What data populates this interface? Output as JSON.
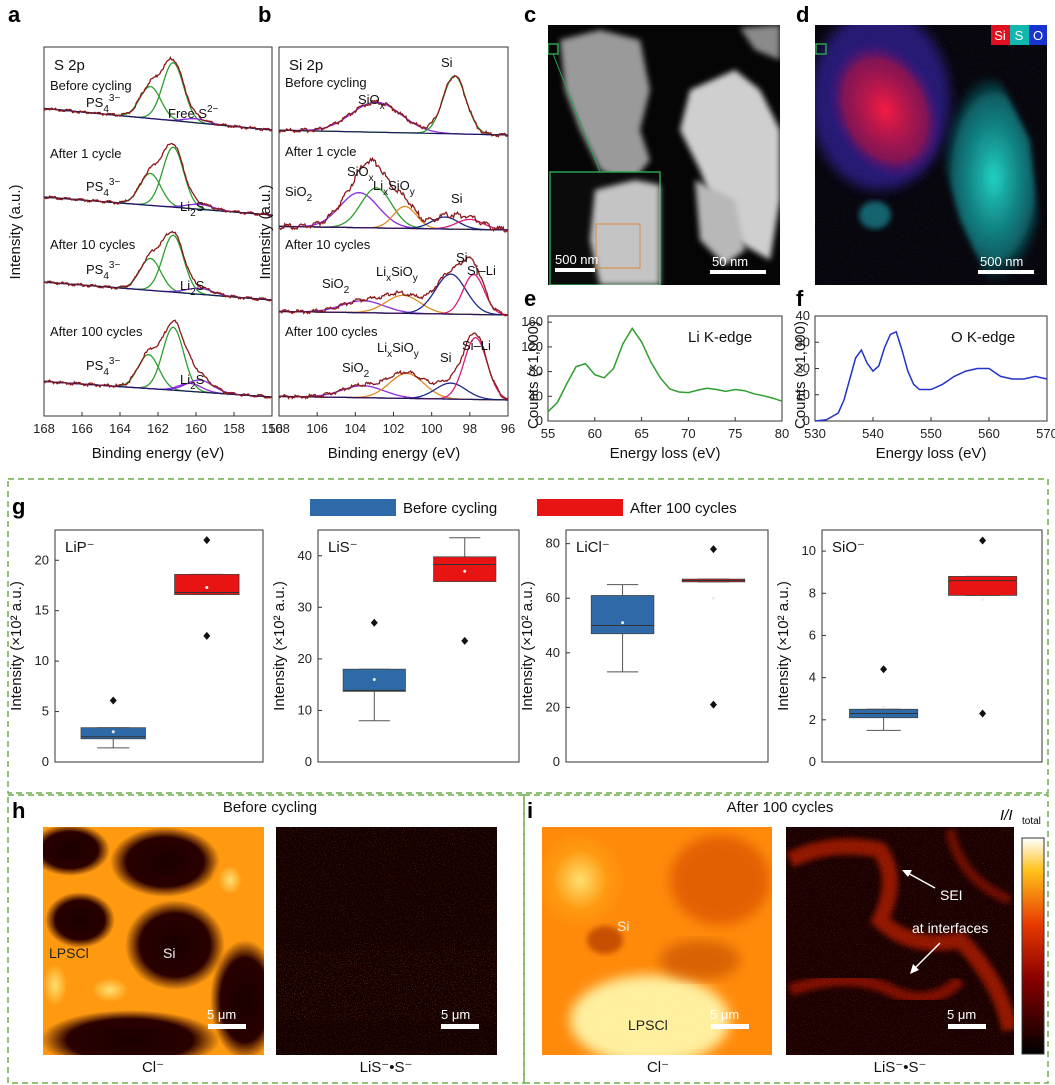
{
  "colors": {
    "raw": "#8b1a1a",
    "fit_green": "#2e9e2e",
    "fit_purple": "#8a2be2",
    "fit_orange": "#e08a1e",
    "fit_navy": "#1e2a8a",
    "fit_pink": "#e0187a",
    "li_edge": "#2e9e2e",
    "o_edge": "#2233cc",
    "before": "#2f6aa8",
    "after": "#e81414",
    "dash_box": "#6dae4b"
  },
  "panel_a": {
    "label": "a",
    "title": "S 2p",
    "xlabel": "Binding energy (eV)",
    "ylabel": "Intensity (a.u.)",
    "xticks": [
      "168",
      "166",
      "164",
      "162",
      "160",
      "158",
      "156"
    ],
    "rows": [
      {
        "name": "Before cycling",
        "peaks": [
          "PS4 3−",
          "Free S2−"
        ]
      },
      {
        "name": "After 1 cycle",
        "peaks": [
          "PS4 3−",
          "Li2S"
        ]
      },
      {
        "name": "After 10 cycles",
        "peaks": [
          "PS4 3−",
          "Li2S"
        ]
      },
      {
        "name": "After 100 cycles",
        "peaks": [
          "PS4 3−",
          "Li2S"
        ]
      }
    ]
  },
  "panel_b": {
    "label": "b",
    "title": "Si 2p",
    "xlabel": "Binding energy (eV)",
    "ylabel": "Intensity (a.u.)",
    "xticks": [
      "108",
      "106",
      "104",
      "102",
      "100",
      "98",
      "96"
    ],
    "rows": [
      {
        "name": "Before cycling",
        "peaks": [
          "SiOx",
          "Si"
        ]
      },
      {
        "name": "After 1 cycle",
        "peaks": [
          "SiO2",
          "SiOx",
          "LixSiOy",
          "Si"
        ]
      },
      {
        "name": "After 10 cycles",
        "peaks": [
          "SiO2",
          "LixSiOy",
          "Si",
          "Si–Li"
        ]
      },
      {
        "name": "After 100 cycles",
        "peaks": [
          "SiO2",
          "LixSiOy",
          "Si",
          "Si–Li"
        ]
      }
    ]
  },
  "panel_c": {
    "label": "c",
    "scale_main": "500 nm",
    "scale_inset": "50 nm"
  },
  "panel_d": {
    "label": "d",
    "legend": [
      "Si",
      "S",
      "O"
    ],
    "scale": "500 nm"
  },
  "panel_e": {
    "label": "e",
    "title": "Li K-edge",
    "xlabel": "Energy loss (eV)",
    "ylabel": "Counts (×1,000)",
    "xticks": [
      "55",
      "60",
      "65",
      "70",
      "75",
      "80"
    ],
    "yticks": [
      "0",
      "40",
      "80",
      "120",
      "160"
    ]
  },
  "panel_f": {
    "label": "f",
    "title": "O K-edge",
    "xlabel": "Energy loss (eV)",
    "ylabel": "Counts (×1,000)",
    "xticks": [
      "530",
      "540",
      "550",
      "560",
      "570"
    ],
    "yticks": [
      "0",
      "10",
      "20",
      "30",
      "40"
    ]
  },
  "panel_g": {
    "label": "g",
    "legend_before": "Before cycling",
    "legend_after": "After 100 cycles",
    "ylabel": "Intensity (×10² a.u.)",
    "plots": [
      {
        "name": "LiP⁻",
        "yticks": [
          "0",
          "5",
          "10",
          "15",
          "20"
        ],
        "ymax": 23
      },
      {
        "name": "LiS⁻",
        "yticks": [
          "0",
          "10",
          "20",
          "30",
          "40"
        ],
        "ymax": 45
      },
      {
        "name": "LiCl⁻",
        "yticks": [
          "0",
          "20",
          "40",
          "60",
          "80"
        ],
        "ymax": 85
      },
      {
        "name": "SiO⁻",
        "yticks": [
          "0",
          "2",
          "4",
          "6",
          "8",
          "10"
        ],
        "ymax": 11
      }
    ]
  },
  "panel_h": {
    "label": "h",
    "title": "Before cycling",
    "map1_label": "Cl⁻",
    "map2_label": "LiS⁻•S⁻",
    "ann_lpscl": "LPSCl",
    "ann_si": "Si",
    "scale": "5 μm"
  },
  "panel_i": {
    "label": "i",
    "title": "After 100 cycles",
    "map1_label": "Cl⁻",
    "map2_label": "LiS⁻•S⁻",
    "ann_si": "Si",
    "ann_lpscl": "LPSCl",
    "ann_sei": "SEI",
    "ann_sei2": "at interfaces",
    "scale": "5 μm",
    "colorbar_label": "I/I",
    "colorbar_sub": "total"
  },
  "chart_data": [
    {
      "type": "line",
      "title": "Li K-edge",
      "xlabel": "Energy loss (eV)",
      "ylabel": "Counts (×1,000)",
      "xlim": [
        55,
        80
      ],
      "ylim": [
        0,
        170
      ],
      "x": [
        55,
        56,
        57,
        58,
        59,
        60,
        61,
        62,
        63,
        64,
        65,
        66,
        67,
        68,
        69,
        70,
        71,
        72,
        73,
        74,
        75,
        76,
        77,
        78,
        79,
        80
      ],
      "y": [
        15,
        30,
        60,
        88,
        93,
        75,
        70,
        85,
        125,
        150,
        128,
        95,
        70,
        52,
        47,
        46,
        50,
        53,
        51,
        48,
        51,
        49,
        44,
        41,
        37,
        32
      ]
    },
    {
      "type": "line",
      "title": "O K-edge",
      "xlabel": "Energy loss (eV)",
      "ylabel": "Counts (×1,000)",
      "xlim": [
        530,
        570
      ],
      "ylim": [
        0,
        40
      ],
      "x": [
        530,
        532,
        534,
        535,
        536,
        537,
        538,
        539,
        540,
        541,
        542,
        543,
        544,
        545,
        546,
        547,
        548,
        550,
        552,
        554,
        556,
        558,
        560,
        562,
        564,
        566,
        568,
        570
      ],
      "y": [
        0,
        0.5,
        3,
        8,
        16,
        24,
        27,
        22,
        19,
        21,
        28,
        33,
        34,
        27,
        19,
        14,
        12,
        12,
        14,
        17,
        19,
        20,
        20,
        17,
        16,
        16,
        17,
        16
      ]
    },
    {
      "type": "box",
      "title": "LiP⁻",
      "ylabel": "Intensity (×10² a.u.)",
      "series": [
        {
          "name": "Before cycling",
          "q1": 2.3,
          "median": 2.5,
          "q3": 3.4,
          "min": 1.4,
          "max": 3.4,
          "outliers": [
            6.1
          ],
          "mean": 3.0
        },
        {
          "name": "After 100 cycles",
          "q1": 16.6,
          "median": 16.8,
          "q3": 18.6,
          "min": 16.6,
          "max": 18.6,
          "outliers": [
            22.0,
            12.5
          ],
          "mean": 17.3
        }
      ]
    },
    {
      "type": "box",
      "title": "LiS⁻",
      "ylabel": "Intensity (×10² a.u.)",
      "series": [
        {
          "name": "Before cycling",
          "q1": 13.7,
          "median": 13.9,
          "q3": 18.0,
          "min": 8.0,
          "max": 18.0,
          "outliers": [
            27.0
          ],
          "mean": 16.0
        },
        {
          "name": "After 100 cycles",
          "q1": 35.0,
          "median": 38.3,
          "q3": 39.8,
          "min": 35.0,
          "max": 43.5,
          "outliers": [
            23.5
          ],
          "mean": 37.0
        }
      ]
    },
    {
      "type": "box",
      "title": "LiCl⁻",
      "ylabel": "Intensity (×10² a.u.)",
      "series": [
        {
          "name": "Before cycling",
          "q1": 47.0,
          "median": 50.0,
          "q3": 61.0,
          "min": 33.0,
          "max": 65.0,
          "outliers": [],
          "mean": 51.0
        },
        {
          "name": "After 100 cycles",
          "q1": 66.0,
          "median": 66.5,
          "q3": 67.0,
          "min": 66.0,
          "max": 67.0,
          "outliers": [
            78.0,
            21.0
          ],
          "mean": 60.0
        }
      ]
    },
    {
      "type": "box",
      "title": "SiO⁻",
      "ylabel": "Intensity (×10² a.u.)",
      "series": [
        {
          "name": "Before cycling",
          "q1": 2.1,
          "median": 2.3,
          "q3": 2.5,
          "min": 1.5,
          "max": 2.5,
          "outliers": [
            4.4
          ],
          "mean": 2.6
        },
        {
          "name": "After 100 cycles",
          "q1": 7.9,
          "median": 8.6,
          "q3": 8.8,
          "min": 7.9,
          "max": 8.8,
          "outliers": [
            10.5,
            2.3
          ],
          "mean": 7.7
        }
      ]
    }
  ]
}
